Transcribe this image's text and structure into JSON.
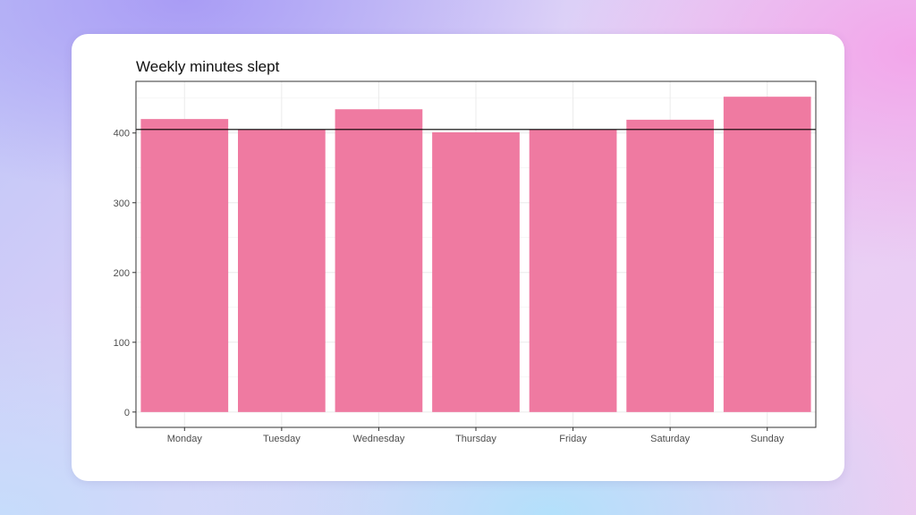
{
  "chart_data": {
    "type": "bar",
    "title": "Weekly minutes slept",
    "xlabel": "",
    "ylabel": "",
    "categories": [
      "Monday",
      "Tuesday",
      "Wednesday",
      "Thursday",
      "Friday",
      "Saturday",
      "Sunday"
    ],
    "values": [
      420,
      405,
      434,
      401,
      405,
      419,
      452
    ],
    "reference_line": 405,
    "ylim": [
      -22,
      474
    ],
    "yticks": [
      0,
      100,
      200,
      300,
      400
    ],
    "grid": true,
    "bar_color": "#ef7aa1",
    "reference_line_color": "#000000"
  }
}
